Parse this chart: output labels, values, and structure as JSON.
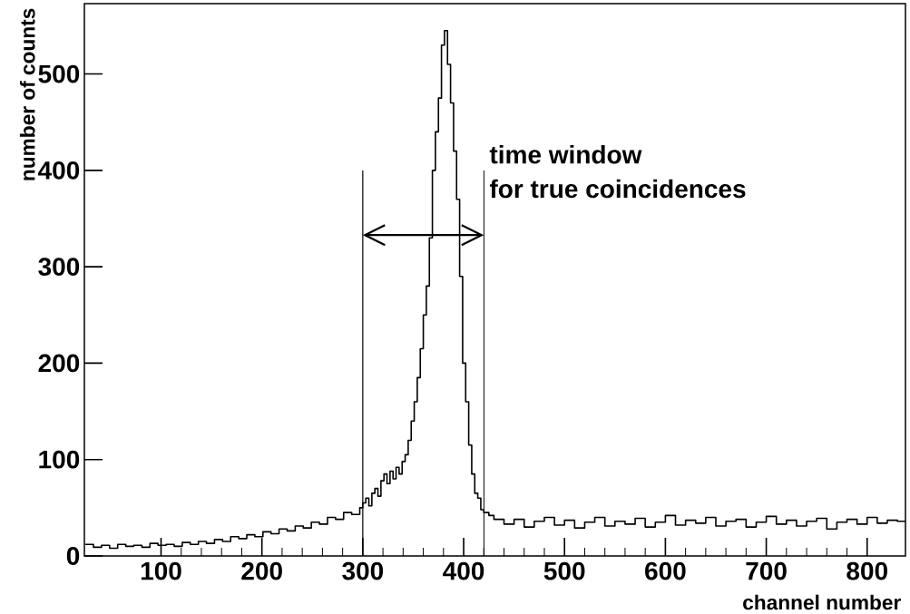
{
  "chart_data": {
    "type": "step",
    "xlabel": "channel number",
    "ylabel": "number of counts",
    "annotations": [
      "time window",
      "for true coincidences"
    ],
    "xlim": [
      24,
      838
    ],
    "ylim": [
      0,
      573
    ],
    "xticks": [
      100,
      200,
      300,
      400,
      500,
      600,
      700,
      800
    ],
    "yticks": [
      0,
      100,
      200,
      300,
      400,
      500
    ],
    "ref_lines": [
      {
        "axis": "x",
        "value": 300
      },
      {
        "axis": "x",
        "value": 420
      }
    ],
    "color": "#000000",
    "x": [
      25,
      33,
      41,
      49,
      57,
      65,
      73,
      81,
      89,
      97,
      105,
      113,
      121,
      129,
      137,
      145,
      153,
      161,
      169,
      177,
      185,
      193,
      201,
      209,
      217,
      225,
      233,
      241,
      249,
      257,
      265,
      273,
      281,
      289,
      297,
      300,
      303,
      306,
      309,
      312,
      315,
      318,
      321,
      324,
      327,
      330,
      333,
      336,
      339,
      342,
      345,
      348,
      351,
      354,
      357,
      360,
      363,
      366,
      369,
      372,
      375,
      378,
      381,
      384,
      387,
      390,
      393,
      396,
      399,
      402,
      405,
      408,
      411,
      414,
      417,
      420,
      425,
      430,
      440,
      450,
      460,
      470,
      480,
      490,
      500,
      510,
      520,
      530,
      540,
      550,
      560,
      570,
      580,
      590,
      600,
      610,
      620,
      630,
      640,
      650,
      660,
      670,
      680,
      690,
      700,
      710,
      720,
      730,
      740,
      750,
      760,
      770,
      780,
      790,
      800,
      810,
      820,
      830,
      838
    ],
    "values": [
      12,
      9,
      11,
      8,
      12,
      10,
      11,
      9,
      13,
      11,
      12,
      10,
      14,
      12,
      15,
      13,
      17,
      15,
      20,
      18,
      22,
      20,
      25,
      23,
      28,
      26,
      31,
      29,
      35,
      33,
      40,
      38,
      45,
      43,
      50,
      55,
      60,
      52,
      65,
      70,
      62,
      78,
      85,
      75,
      88,
      80,
      92,
      85,
      98,
      105,
      120,
      140,
      160,
      185,
      215,
      250,
      280,
      330,
      400,
      440,
      475,
      530,
      545,
      510,
      470,
      420,
      370,
      290,
      200,
      160,
      115,
      85,
      65,
      60,
      48,
      45,
      42,
      38,
      33,
      38,
      30,
      36,
      40,
      32,
      37,
      29,
      35,
      40,
      31,
      36,
      33,
      39,
      30,
      35,
      42,
      32,
      37,
      34,
      40,
      31,
      36,
      38,
      30,
      35,
      41,
      33,
      37,
      31,
      36,
      39,
      28,
      35,
      38,
      33,
      40,
      34,
      37,
      36,
      36
    ]
  }
}
